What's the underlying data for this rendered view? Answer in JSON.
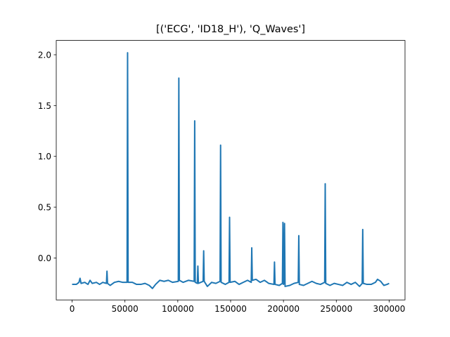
{
  "chart_data": {
    "type": "line",
    "title": "[('ECG', 'ID18_H'), 'Q_Waves']",
    "xlim": [
      -15000,
      315000
    ],
    "ylim": [
      -0.413,
      2.141
    ],
    "xticks": [
      0,
      50000,
      100000,
      150000,
      200000,
      250000,
      300000
    ],
    "yticks": [
      {
        "value": 0,
        "label": "0.0"
      },
      0.5,
      {
        "value": 1,
        "label": "1.0"
      },
      1.5,
      {
        "value": 2,
        "label": "2.0"
      }
    ],
    "series": [
      {
        "color": "#1f77b4",
        "x": [
          0,
          4000,
          6500,
          7500,
          8500,
          12000,
          15000,
          17000,
          19000,
          23000,
          26000,
          29000,
          32500,
          33000,
          33500,
          36000,
          40000,
          44000,
          48000,
          52000,
          52500,
          53000,
          57000,
          61000,
          65000,
          69000,
          73000,
          76000,
          79000,
          83000,
          87000,
          91000,
          95000,
          100500,
          101000,
          101500,
          105000,
          110000,
          115500,
          116000,
          116500,
          118500,
          119000,
          119500,
          124000,
          124500,
          125000,
          128000,
          132000,
          136000,
          140000,
          140500,
          141000,
          145000,
          148500,
          149000,
          149500,
          154000,
          158000,
          162000,
          166000,
          169500,
          170000,
          170500,
          174000,
          178000,
          182000,
          186000,
          191000,
          191500,
          192000,
          196000,
          199000,
          199500,
          200000,
          200500,
          201000,
          201500,
          206000,
          210000,
          214000,
          214500,
          215000,
          219000,
          223000,
          227000,
          231000,
          235000,
          239000,
          239500,
          240000,
          244000,
          248000,
          252000,
          256000,
          260000,
          264000,
          268000,
          272000,
          274500,
          275000,
          275500,
          279000,
          283000,
          287000,
          289000,
          292000,
          295000,
          298000,
          300000
        ],
        "values": [
          -0.26,
          -0.26,
          -0.24,
          -0.2,
          -0.25,
          -0.24,
          -0.26,
          -0.22,
          -0.25,
          -0.24,
          -0.26,
          -0.24,
          -0.25,
          -0.13,
          -0.25,
          -0.27,
          -0.24,
          -0.23,
          -0.24,
          -0.24,
          2.02,
          -0.24,
          -0.24,
          -0.26,
          -0.26,
          -0.25,
          -0.27,
          -0.3,
          -0.26,
          -0.22,
          -0.23,
          -0.22,
          -0.24,
          -0.23,
          1.77,
          -0.22,
          -0.24,
          -0.22,
          -0.23,
          1.35,
          -0.24,
          -0.25,
          -0.08,
          -0.25,
          -0.23,
          0.07,
          -0.23,
          -0.28,
          -0.24,
          -0.25,
          -0.23,
          1.11,
          -0.24,
          -0.26,
          -0.24,
          0.4,
          -0.24,
          -0.23,
          -0.26,
          -0.24,
          -0.22,
          -0.24,
          0.1,
          -0.22,
          -0.21,
          -0.24,
          -0.22,
          -0.25,
          -0.26,
          -0.04,
          -0.26,
          -0.27,
          -0.25,
          0.35,
          -0.26,
          -0.25,
          0.34,
          -0.28,
          -0.27,
          -0.25,
          -0.24,
          0.22,
          -0.26,
          -0.27,
          -0.25,
          -0.23,
          -0.25,
          -0.26,
          -0.24,
          0.73,
          -0.25,
          -0.27,
          -0.25,
          -0.26,
          -0.27,
          -0.24,
          -0.26,
          -0.24,
          -0.28,
          -0.25,
          0.28,
          -0.25,
          -0.26,
          -0.26,
          -0.24,
          -0.21,
          -0.23,
          -0.27,
          -0.26,
          -0.25
        ]
      }
    ]
  }
}
